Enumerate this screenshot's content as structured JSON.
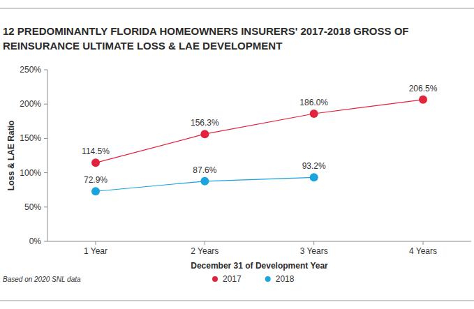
{
  "chart_data": {
    "type": "line",
    "title": "12 PREDOMINANTLY FLORIDA HOMEOWNERS INSURERS' 2017-2018 GROSS OF REINSURANCE ULTIMATE LOSS & LAE DEVELOPMENT",
    "x_label": "December 31 of Development Year",
    "y_label": "Loss & LAE Ratio",
    "source": "Based on 2020 SNL data",
    "categories": [
      "1 Year",
      "2 Years",
      "3 Years",
      "4 Years"
    ],
    "series": [
      {
        "name": "2017",
        "color": "#e2233d",
        "marker": "circle",
        "line_style": "solid",
        "values": [
          114.5,
          156.3,
          186.0,
          206.5
        ],
        "value_labels": [
          "114.5%",
          "156.3%",
          "186.0%",
          "206.5%"
        ]
      },
      {
        "name": "2018",
        "color": "#1ba3dd",
        "marker": "circle",
        "line_style": "solid",
        "values": [
          72.9,
          87.6,
          93.2,
          null
        ],
        "value_labels": [
          "72.9%",
          "87.6%",
          "93.2%",
          null
        ]
      }
    ],
    "ylim": [
      0,
      250
    ],
    "yticks": [
      {
        "value": 0,
        "label": "0%"
      },
      {
        "value": 50,
        "label": "50%"
      },
      {
        "value": 100,
        "label": "100%"
      },
      {
        "value": 150,
        "label": "150%"
      },
      {
        "value": 200,
        "label": "200%"
      },
      {
        "value": 250,
        "label": "250%"
      }
    ],
    "grid": false,
    "data_labels": true,
    "legend": "bottom"
  }
}
